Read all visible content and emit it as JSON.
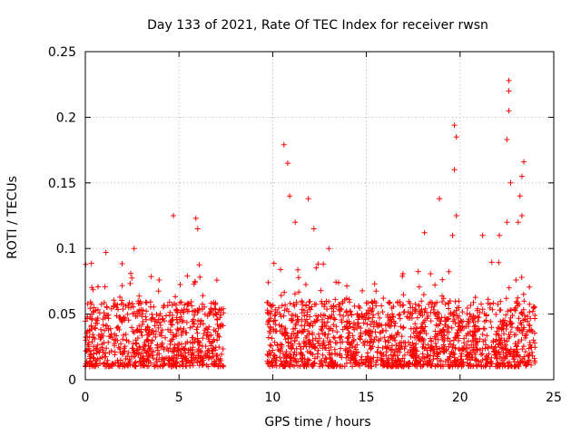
{
  "chart_data": {
    "type": "scatter",
    "title": "Day 133 of 2021, Rate Of TEC Index for receiver rwsn",
    "xlabel": "GPS time / hours",
    "ylabel": "ROTI / TECUs",
    "xlim": [
      0,
      25
    ],
    "ylim": [
      0,
      0.25
    ],
    "xticks": [
      0,
      5,
      10,
      15,
      20,
      25
    ],
    "xtick_labels": [
      "0",
      "5",
      "10",
      "15",
      "20",
      "25"
    ],
    "yticks": [
      0,
      0.05,
      0.1,
      0.15,
      0.2,
      0.25
    ],
    "ytick_labels": [
      "0",
      "0.05",
      "0.1",
      "0.15",
      "0.2",
      "0.25"
    ],
    "grid": true,
    "marker": "+",
    "series_color": "#ff0000",
    "data_gap_hours": [
      7.4,
      9.7
    ],
    "baseline_range": [
      0.01,
      0.06
    ],
    "notable_points": [
      {
        "x": 1.1,
        "y": 0.097
      },
      {
        "x": 2.6,
        "y": 0.1
      },
      {
        "x": 4.7,
        "y": 0.125
      },
      {
        "x": 5.9,
        "y": 0.123
      },
      {
        "x": 6.0,
        "y": 0.115
      },
      {
        "x": 10.6,
        "y": 0.179
      },
      {
        "x": 10.8,
        "y": 0.165
      },
      {
        "x": 10.9,
        "y": 0.14
      },
      {
        "x": 11.2,
        "y": 0.12
      },
      {
        "x": 11.9,
        "y": 0.138
      },
      {
        "x": 12.2,
        "y": 0.115
      },
      {
        "x": 13.0,
        "y": 0.1
      },
      {
        "x": 18.1,
        "y": 0.112
      },
      {
        "x": 18.9,
        "y": 0.138
      },
      {
        "x": 19.7,
        "y": 0.194
      },
      {
        "x": 19.8,
        "y": 0.185
      },
      {
        "x": 19.7,
        "y": 0.16
      },
      {
        "x": 19.8,
        "y": 0.125
      },
      {
        "x": 19.6,
        "y": 0.11
      },
      {
        "x": 21.2,
        "y": 0.11
      },
      {
        "x": 22.1,
        "y": 0.11
      },
      {
        "x": 22.6,
        "y": 0.228
      },
      {
        "x": 22.6,
        "y": 0.22
      },
      {
        "x": 22.6,
        "y": 0.205
      },
      {
        "x": 22.5,
        "y": 0.183
      },
      {
        "x": 22.7,
        "y": 0.15
      },
      {
        "x": 23.2,
        "y": 0.14
      },
      {
        "x": 23.3,
        "y": 0.155
      },
      {
        "x": 23.4,
        "y": 0.166
      },
      {
        "x": 23.3,
        "y": 0.125
      },
      {
        "x": 23.1,
        "y": 0.12
      },
      {
        "x": 22.5,
        "y": 0.12
      }
    ]
  }
}
